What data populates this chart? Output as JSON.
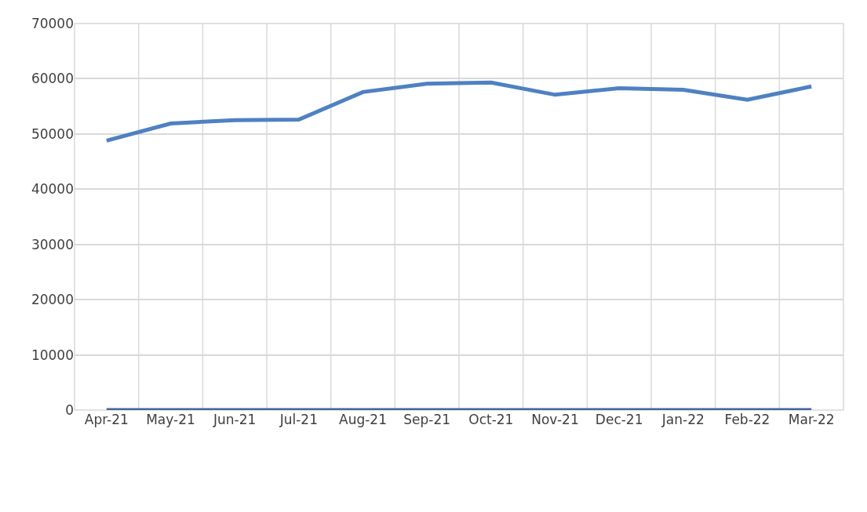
{
  "chart_data": {
    "type": "line",
    "categories": [
      "Apr-21",
      "May-21",
      "Jun-21",
      "Jul-21",
      "Aug-21",
      "Sep-21",
      "Oct-21",
      "Nov-21",
      "Dec-21",
      "Jan-22",
      "Feb-22",
      "Mar-22"
    ],
    "series": [
      {
        "color": "#44679a",
        "values": [
          0,
          0,
          0,
          0,
          0,
          0,
          0,
          0,
          0,
          0,
          0,
          0
        ]
      },
      {
        "color": "#4f81c2",
        "values": [
          48800,
          51900,
          52500,
          52600,
          57600,
          59100,
          59300,
          57100,
          58300,
          58000,
          56200,
          58600
        ]
      }
    ],
    "ylim": [
      0,
      70000
    ],
    "yticks": [
      0,
      10000,
      20000,
      30000,
      40000,
      50000,
      60000,
      70000
    ],
    "grid": true,
    "marker": "none",
    "line_style": "solid"
  }
}
